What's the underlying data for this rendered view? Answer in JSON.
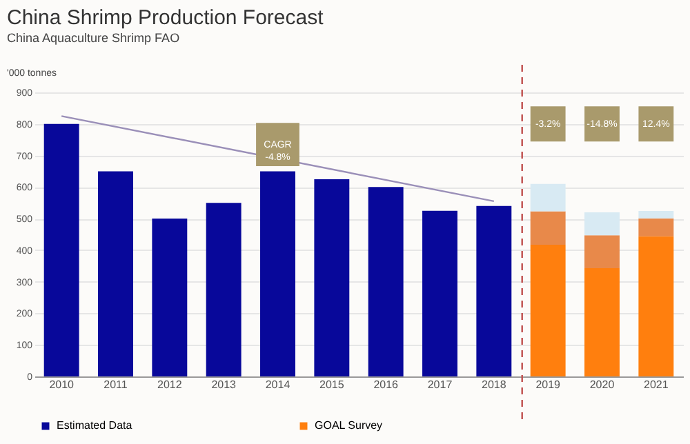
{
  "chart_data": {
    "type": "bar",
    "title": "China Shrimp Production Forecast",
    "subtitle": "China Aquaculture  Shrimp FAO",
    "ylabel": "'000 tonnes",
    "categories": [
      "2010",
      "2011",
      "2012",
      "2013",
      "2014",
      "2015",
      "2016",
      "2017",
      "2018",
      "2019",
      "2020",
      "2021"
    ],
    "stacked": true,
    "series": [
      {
        "name": "Estimated Data",
        "color": "#08089a",
        "values": [
          800,
          650,
          500,
          550,
          650,
          625,
          600,
          525,
          540,
          null,
          null,
          null
        ]
      },
      {
        "name": "GOAL Survey",
        "color": "#ff7f0e",
        "values": [
          null,
          null,
          null,
          null,
          null,
          null,
          null,
          null,
          null,
          417,
          343,
          444
        ]
      },
      {
        "color": "#e8894a",
        "values": [
          null,
          null,
          null,
          null,
          null,
          null,
          null,
          null,
          null,
          106,
          104,
          57
        ]
      },
      {
        "color": "#d8eaf3",
        "values": [
          null,
          null,
          null,
          null,
          null,
          null,
          null,
          null,
          null,
          87,
          73,
          23
        ]
      },
      {
        "type": "line",
        "color": "#9a8fb8",
        "values": [
          825,
          null,
          null,
          null,
          null,
          null,
          null,
          null,
          555,
          null,
          null,
          null
        ]
      }
    ],
    "ylim": [
      0,
      900
    ],
    "yticks": [
      0,
      100,
      200,
      300,
      400,
      500,
      600,
      700,
      800,
      900
    ],
    "grid": "y",
    "legend": "bottom",
    "ref_lines": [
      {
        "axis": "x",
        "value": "2019",
        "color": "#c0504d",
        "line_style": "dashed"
      }
    ],
    "annotations": [
      {
        "text": "CAGR\n-4.8%",
        "x": "2014",
        "y": 735
      },
      {
        "text": "-3.2%",
        "x": "2019",
        "y": 800
      },
      {
        "text": "-14.8%",
        "x": "2020",
        "y": 800
      },
      {
        "text": "12.4%",
        "x": "2021",
        "y": 800
      }
    ]
  }
}
